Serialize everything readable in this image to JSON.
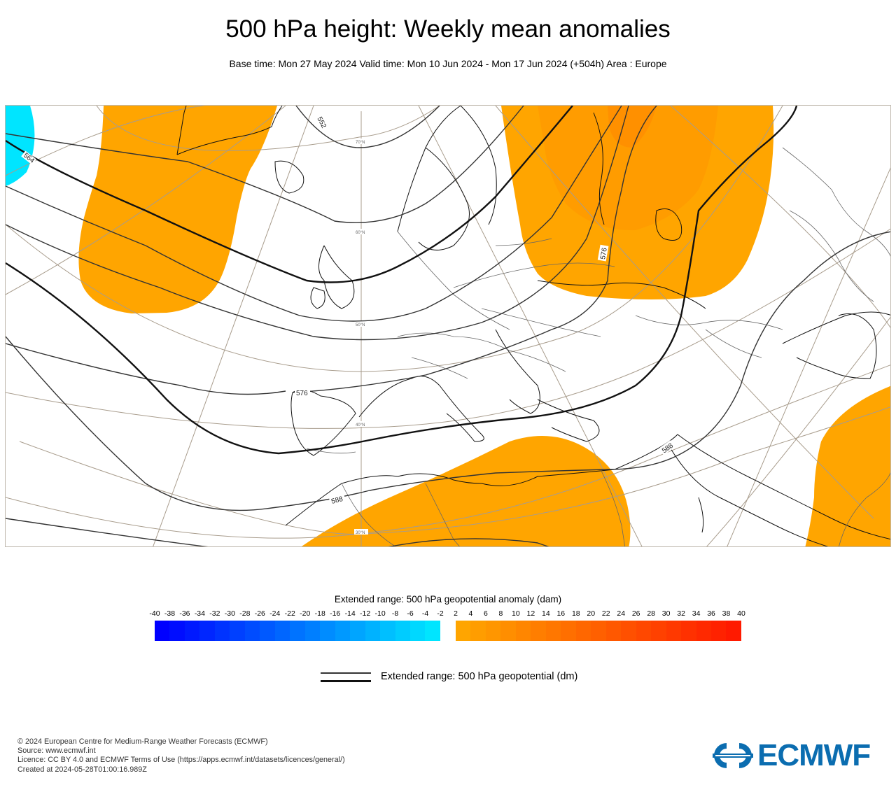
{
  "header": {
    "title": "500 hPa height: Weekly mean anomalies",
    "subtitle": "Base time: Mon 27 May 2024 Valid time: Mon 10 Jun 2024 - Mon 17 Jun 2024 (+504h) Area : Europe"
  },
  "map": {
    "area": "Europe",
    "contour_labels": [
      "552",
      "564",
      "576",
      "576",
      "588",
      "588"
    ],
    "grid_labels": [
      "70°N",
      "60°N",
      "50°N",
      "40°N",
      "30°N"
    ],
    "colors": {
      "positive_anomaly": "#ffa500",
      "positive_anomaly_stronger": "#ff9a00",
      "negative_anomaly": "#00e5ff",
      "contour": "#222222",
      "graticule": "#a89c8c",
      "coastline": "#111111",
      "border": "#666666"
    }
  },
  "colorbar": {
    "title": "Extended range: 500 hPa geopotential anomaly (dam)",
    "negative_ticks": [
      "-40",
      "-38",
      "-36",
      "-34",
      "-32",
      "-30",
      "-28",
      "-26",
      "-24",
      "-22",
      "-20",
      "-18",
      "-16",
      "-14",
      "-12",
      "-10",
      "-8",
      "-6",
      "-4",
      "-2"
    ],
    "positive_ticks": [
      "2",
      "4",
      "6",
      "8",
      "10",
      "12",
      "14",
      "16",
      "18",
      "20",
      "22",
      "24",
      "26",
      "28",
      "30",
      "32",
      "34",
      "36",
      "38",
      "40"
    ],
    "negative_start_color": "#0000ff",
    "negative_end_color": "#00e5ff",
    "positive_start_color": "#ffa500",
    "positive_end_color": "#ff1a00"
  },
  "legend": {
    "contour_label": "Extended range: 500 hPa geopotential (dm)"
  },
  "footer": {
    "lines": [
      "© 2024 European Centre for Medium-Range Weather Forecasts (ECMWF)",
      "Source: www.ecmwf.int",
      "Licence: CC BY 4.0 and ECMWF Terms of Use (https://apps.ecmwf.int/datasets/licences/general/)",
      "Created at 2024-05-28T01:00:16.989Z"
    ]
  },
  "logo": {
    "text": "ECMWF",
    "color": "#0b6db0"
  }
}
